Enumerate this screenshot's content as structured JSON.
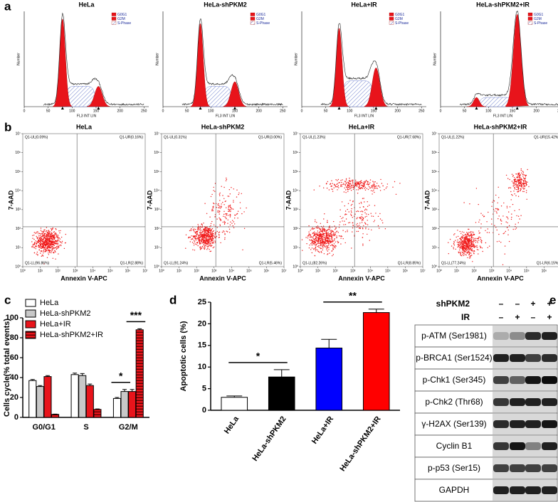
{
  "panel_labels": [
    "a",
    "b",
    "c",
    "d",
    "e"
  ],
  "cell_cycle_histograms": {
    "titles": [
      "HeLa",
      "HeLa-shPKM2",
      "HeLa+IR",
      "HeLa-shPKM2+IR"
    ],
    "legend": [
      "G0G1",
      "G2M",
      "S-Phase"
    ],
    "y_label": "Number",
    "x_label": "FL3 INT LIN",
    "xlim": [
      0,
      260
    ],
    "xticks": [
      0,
      50,
      100,
      150,
      200,
      250
    ]
  },
  "apoptosis_flow": {
    "titles": [
      "HeLa",
      "HeLa-shPKM2",
      "HeLa+IR",
      "HeLa-shPKM2+IR"
    ],
    "x_label": "Annexin V-APC",
    "y_label": "7-AAD",
    "log_scale": true,
    "lim": [
      1,
      10000000
    ],
    "ticks": [
      {
        "value": 1,
        "label": "10⁰"
      },
      {
        "value": 10,
        "label": "10¹"
      },
      {
        "value": 100,
        "label": "10²"
      },
      {
        "value": 1000,
        "label": "10³"
      },
      {
        "value": 10000,
        "label": "10⁴"
      },
      {
        "value": 100000,
        "label": "10⁵"
      },
      {
        "value": 1000000,
        "label": "10⁶"
      },
      {
        "value": 10000000,
        "label": "10⁷"
      }
    ],
    "quadrants": [
      [
        "Q1-UL(0.09%)",
        "Q1-UR(0.16%)",
        "Q1-LL(96.86%)",
        "Q1-LR(2.88%)"
      ],
      [
        "Q1-UL(0.31%)",
        "Q1-UR(3.00%)",
        "Q1-LL(91.24%)",
        "Q1-LR(5.46%)"
      ],
      [
        "Q1-UL(1.23%)",
        "Q1-UR(7.68%)",
        "Q1-LL(82.26%)",
        "Q1-LR(8.85%)"
      ],
      [
        "Q1-UL(1.22%)",
        "Q1-UR(15.42%)",
        "Q1-LL(77.24%)",
        "Q1-LR(6.15%)"
      ]
    ]
  },
  "chart_data": [
    {
      "type": "bar",
      "y_label": "Cells cycle(% total events)",
      "categories": [
        "G0/G1",
        "S",
        "G2/M"
      ],
      "series": [
        {
          "name": "HeLa",
          "color": "#ffffff",
          "values": [
            37,
            43,
            19
          ],
          "errors": [
            1,
            1.5,
            1
          ]
        },
        {
          "name": "HeLa-shPKM2",
          "color": "#c8c8c8",
          "values": [
            31,
            42,
            26
          ],
          "errors": [
            1,
            2,
            2
          ]
        },
        {
          "name": "HeLa+IR",
          "color": "#e8141b",
          "values": [
            41,
            32,
            26
          ],
          "errors": [
            1,
            1.5,
            2
          ]
        },
        {
          "name": "HeLa-shPKM2+IR",
          "color": "#e8141b",
          "hatch": "horizontal",
          "values": [
            3,
            8,
            88
          ],
          "errors": [
            0.3,
            0.5,
            1
          ]
        }
      ],
      "ylim": [
        0,
        100
      ],
      "yticks": [
        0,
        20,
        40,
        60,
        80,
        100
      ],
      "annotations": [
        "*",
        "***"
      ]
    },
    {
      "type": "bar",
      "y_label": "Apoptotic cells (%)",
      "categories": [
        "HeLa",
        "HeLa-shPKM2",
        "HeLa+IR",
        "HeLa-shPKM2+IR"
      ],
      "values": [
        3,
        7.7,
        14.4,
        22.6
      ],
      "errors": [
        0.3,
        1.7,
        2,
        0.8
      ],
      "colors": [
        "#ffffff",
        "#000000",
        "#0000ff",
        "#ff0000"
      ],
      "ylim": [
        0,
        25
      ],
      "yticks": [
        0,
        5,
        10,
        15,
        20,
        25
      ],
      "annotations": [
        "*",
        "**"
      ]
    }
  ],
  "western_blot": {
    "conditions": [
      {
        "name": "shPKM2",
        "marks": [
          "–",
          "–",
          "+",
          "+"
        ]
      },
      {
        "name": "IR",
        "marks": [
          "–",
          "+",
          "–",
          "+"
        ]
      }
    ],
    "proteins": [
      "p-ATM (Ser1981)",
      "p-BRCA1 (Ser1524)",
      "p-Chk1 (Ser345)",
      "p-Chk2 (Thr68)",
      "γ-H2AX (Ser139)",
      "Cyclin B1",
      "p-p53 (Ser15)",
      "GAPDH"
    ]
  }
}
